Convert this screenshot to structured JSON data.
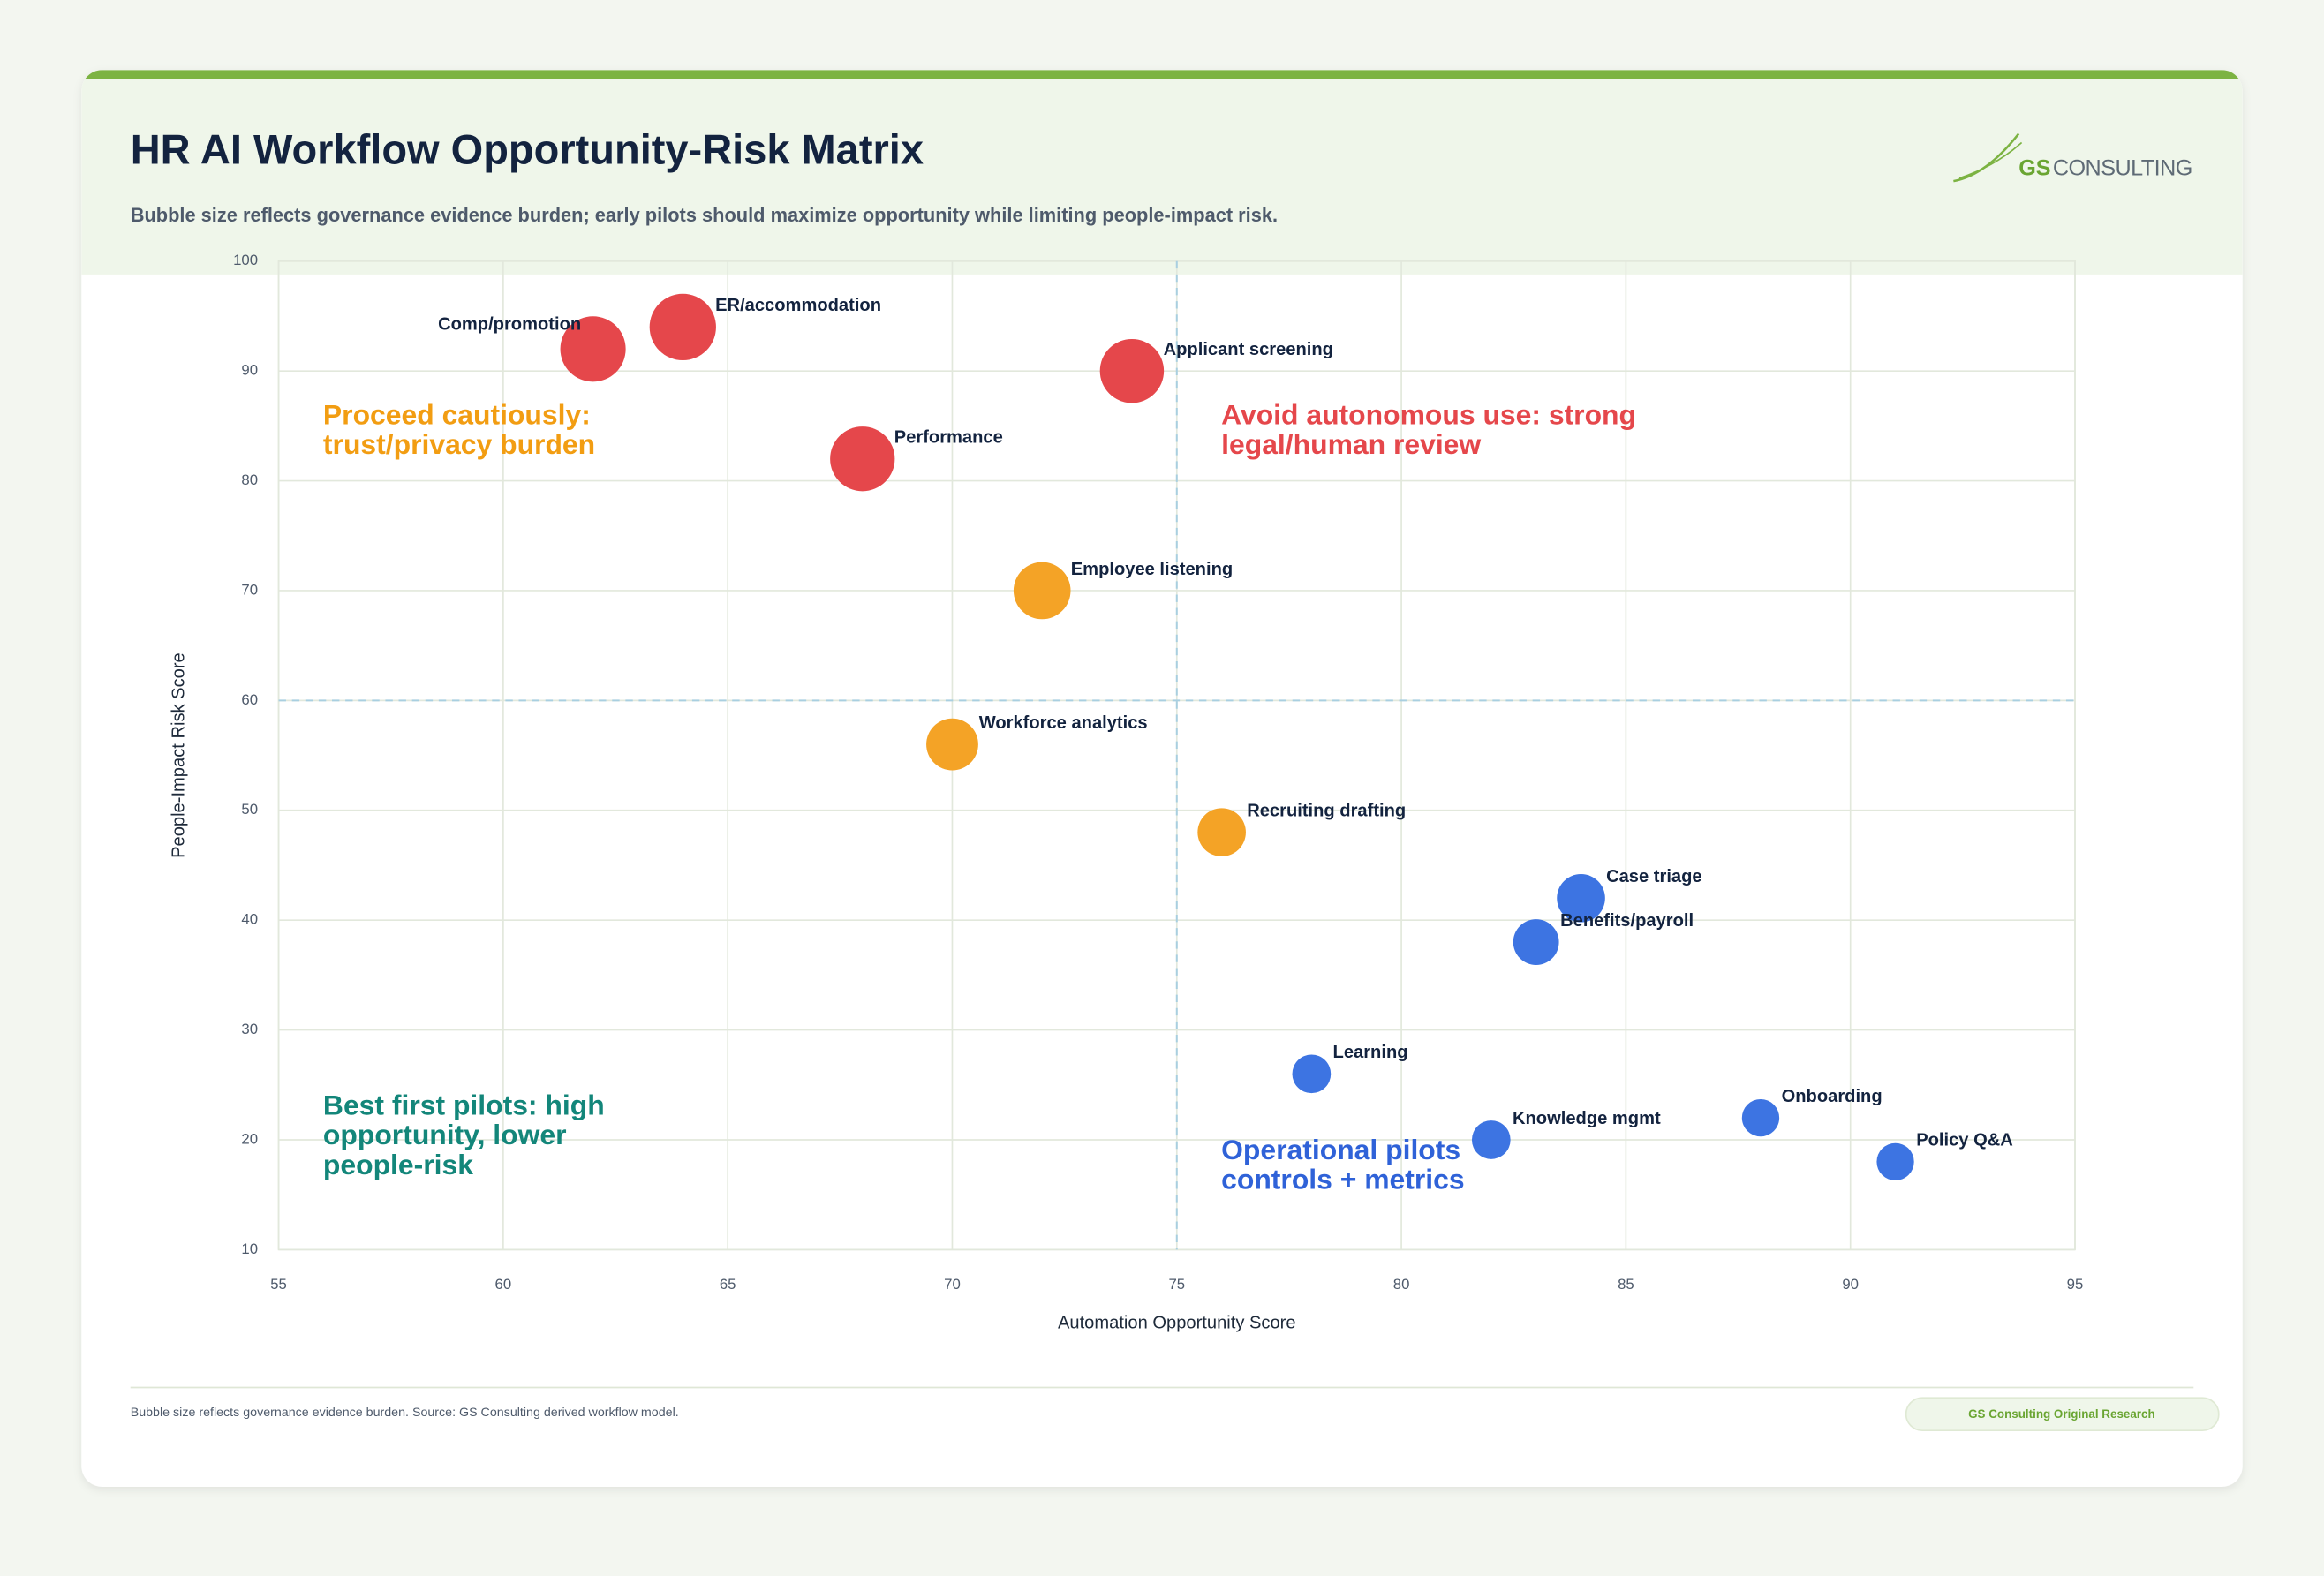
{
  "header": {
    "title": "HR AI Workflow Opportunity-Risk Matrix",
    "subtitle": "Bubble size reflects governance evidence burden; early pilots should maximize opportunity while limiting people-impact risk."
  },
  "logo": {
    "mark": "GS",
    "text": "CONSULTING"
  },
  "chart_data": {
    "type": "bubble",
    "x_label": "Automation Opportunity Score",
    "y_label": "People-Impact Risk Score",
    "xlim": [
      55,
      95
    ],
    "xticks": [
      55,
      60,
      65,
      70,
      75,
      80,
      85,
      90,
      95
    ],
    "ylim": [
      10,
      100
    ],
    "yticks": [
      10,
      20,
      30,
      40,
      50,
      60,
      70,
      80,
      90,
      100
    ],
    "grid": true,
    "divider_x": 75,
    "divider_y": 60,
    "points": [
      {
        "label": "Comp/promotion",
        "x": 62,
        "y": 92,
        "size": 92,
        "color": "#e5474b"
      },
      {
        "label": "ER/accommodation",
        "x": 64,
        "y": 94,
        "size": 95,
        "color": "#e5474b"
      },
      {
        "label": "Applicant screening",
        "x": 74,
        "y": 90,
        "size": 88,
        "color": "#e5474b"
      },
      {
        "label": "Performance",
        "x": 68,
        "y": 82,
        "size": 90,
        "color": "#e5474b"
      },
      {
        "label": "Employee listening",
        "x": 72,
        "y": 70,
        "size": 70,
        "color": "#f4a326"
      },
      {
        "label": "Workforce analytics",
        "x": 70,
        "y": 56,
        "size": 58,
        "color": "#f4a326"
      },
      {
        "label": "Recruiting drafting",
        "x": 76,
        "y": 48,
        "size": 50,
        "color": "#f4a326"
      },
      {
        "label": "Case triage",
        "x": 84,
        "y": 42,
        "size": 50,
        "color": "#3d74e2"
      },
      {
        "label": "Benefits/payroll",
        "x": 83,
        "y": 38,
        "size": 45,
        "color": "#3d74e2"
      },
      {
        "label": "Learning",
        "x": 78,
        "y": 26,
        "size": 32,
        "color": "#3d74e2"
      },
      {
        "label": "Knowledge mgmt",
        "x": 82,
        "y": 20,
        "size": 32,
        "color": "#3d74e2"
      },
      {
        "label": "Onboarding",
        "x": 88,
        "y": 22,
        "size": 30,
        "color": "#3d74e2"
      },
      {
        "label": "Policy Q&A",
        "x": 91,
        "y": 18,
        "size": 30,
        "color": "#3d74e2"
      }
    ],
    "annotations": [
      {
        "lines": [
          "Proceed cautiously:",
          "trust/privacy burden"
        ],
        "color": "#f29d12"
      },
      {
        "lines": [
          "Avoid autonomous use: strong",
          "legal/human review"
        ],
        "color": "#e5474b"
      },
      {
        "lines": [
          "Best first pilots: high",
          "opportunity, lower",
          "people-risk"
        ],
        "color": "#13867a"
      },
      {
        "lines": [
          "Operational pilots",
          "controls + metrics"
        ],
        "color": "#2f62d8"
      }
    ]
  },
  "footer": {
    "note": "Bubble size reflects governance evidence burden. Source: GS Consulting derived workflow model.",
    "badge": "GS Consulting Original Research"
  }
}
